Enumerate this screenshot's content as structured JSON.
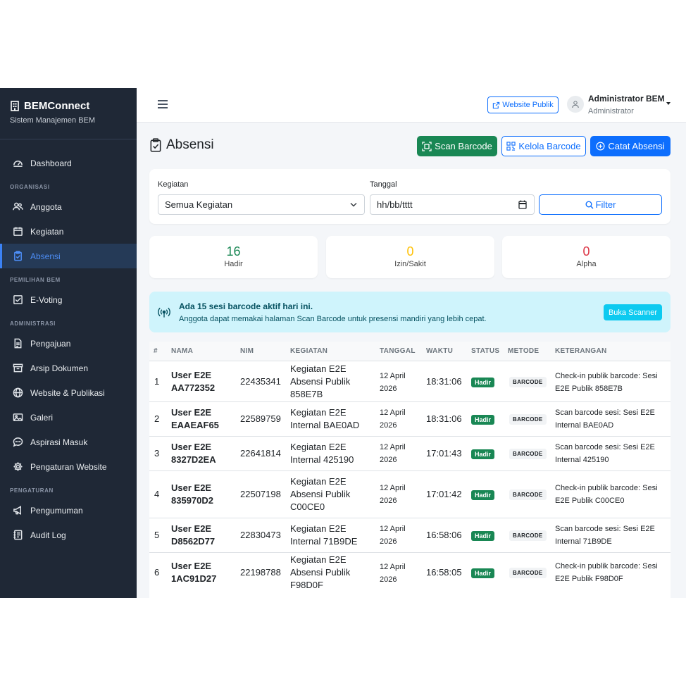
{
  "brand": {
    "title": "BEMConnect",
    "subtitle": "Sistem Manajemen BEM"
  },
  "sidebar": {
    "dashboard": "Dashboard",
    "section_organisasi": "ORGANISASI",
    "anggota": "Anggota",
    "kegiatan": "Kegiatan",
    "absensi": "Absensi",
    "section_pemilihan": "PEMILIHAN BEM",
    "evoting": "E-Voting",
    "section_administrasi": "ADMINISTRASI",
    "pengajuan": "Pengajuan",
    "arsip": "Arsip Dokumen",
    "website": "Website & Publikasi",
    "galeri": "Galeri",
    "aspirasi": "Aspirasi Masuk",
    "pengaturan_website": "Pengaturan Website",
    "section_pengaturan": "PENGATURAN",
    "pengumuman": "Pengumuman",
    "audit": "Audit Log"
  },
  "topbar": {
    "website_button": "Website Publik",
    "user_name": "Administrator BEM",
    "user_role": "Administrator"
  },
  "page": {
    "title": "Absensi",
    "scan_button": "Scan Barcode",
    "kelola_button": "Kelola Barcode",
    "catat_button": "Catat Absensi"
  },
  "filter": {
    "kegiatan_label": "Kegiatan",
    "kegiatan_value": "Semua Kegiatan",
    "tanggal_label": "Tanggal",
    "tanggal_placeholder": "hh/bb/tttt",
    "filter_button": "Filter"
  },
  "stats": {
    "hadir_value": "16",
    "hadir_label": "Hadir",
    "izin_value": "0",
    "izin_label": "Izin/Sakit",
    "alpha_value": "0",
    "alpha_label": "Alpha"
  },
  "colors": {
    "hadir": "#198754",
    "izin": "#ffc107",
    "alpha": "#dc3545"
  },
  "alert": {
    "title": "Ada 15 sesi barcode aktif hari ini.",
    "text": "Anggota dapat memakai halaman Scan Barcode untuk presensi mandiri yang lebih cepat.",
    "button": "Buka Scanner"
  },
  "table": {
    "headers": [
      "#",
      "NAMA",
      "NIM",
      "KEGIATAN",
      "TANGGAL",
      "WAKTU",
      "STATUS",
      "METODE",
      "KETERANGAN"
    ],
    "rows": [
      {
        "no": "1",
        "nama": "User E2E AA772352",
        "nim": "22435341",
        "kegiatan": "Kegiatan E2E Absensi Publik 858E7B",
        "tanggal": "12 April 2026",
        "waktu": "18:31:06",
        "status": "Hadir",
        "metode": "BARCODE",
        "keterangan": "Check-in publik barcode: Sesi E2E Publik 858E7B"
      },
      {
        "no": "2",
        "nama": "User E2E EAAEAF65",
        "nim": "22589759",
        "kegiatan": "Kegiatan E2E Internal BAE0AD",
        "tanggal": "12 April 2026",
        "waktu": "18:31:06",
        "status": "Hadir",
        "metode": "BARCODE",
        "keterangan": "Scan barcode sesi: Sesi E2E Internal BAE0AD"
      },
      {
        "no": "3",
        "nama": "User E2E 8327D2EA",
        "nim": "22641814",
        "kegiatan": "Kegiatan E2E Internal 425190",
        "tanggal": "12 April 2026",
        "waktu": "17:01:43",
        "status": "Hadir",
        "metode": "BARCODE",
        "keterangan": "Scan barcode sesi: Sesi E2E Internal 425190"
      },
      {
        "no": "4",
        "nama": "User E2E 835970D2",
        "nim": "22507198",
        "kegiatan": "Kegiatan E2E Absensi Publik C00CE0",
        "tanggal": "12 April 2026",
        "waktu": "17:01:42",
        "status": "Hadir",
        "metode": "BARCODE",
        "keterangan": "Check-in publik barcode: Sesi E2E Publik C00CE0"
      },
      {
        "no": "5",
        "nama": "User E2E D8562D77",
        "nim": "22830473",
        "kegiatan": "Kegiatan E2E Internal 71B9DE",
        "tanggal": "12 April 2026",
        "waktu": "16:58:06",
        "status": "Hadir",
        "metode": "BARCODE",
        "keterangan": "Scan barcode sesi: Sesi E2E Internal 71B9DE"
      },
      {
        "no": "6",
        "nama": "User E2E 1AC91D27",
        "nim": "22198788",
        "kegiatan": "Kegiatan E2E Absensi Publik F98D0F",
        "tanggal": "12 April 2026",
        "waktu": "16:58:05",
        "status": "Hadir",
        "metode": "BARCODE",
        "keterangan": "Check-in publik barcode: Sesi E2E Publik F98D0F"
      }
    ]
  }
}
